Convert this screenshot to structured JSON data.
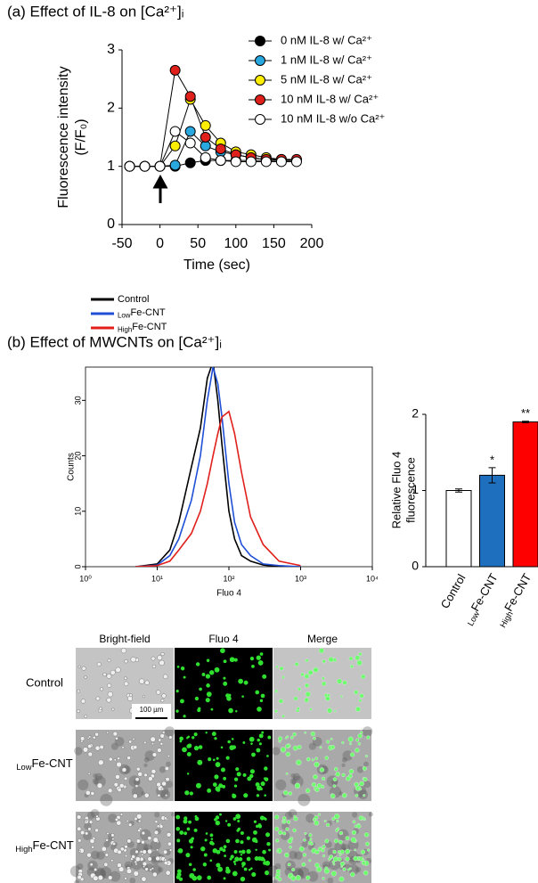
{
  "chart_data": [
    {
      "type": "line",
      "title": "(a) Effect of IL-8 on [Ca²⁺]ᵢ",
      "x_label": "Time (sec)",
      "y_label": [
        "Fluorescence intensity",
        "(F/F₀)"
      ],
      "x": [
        -40,
        -20,
        0,
        20,
        40,
        60,
        80,
        100,
        120,
        140,
        160,
        180
      ],
      "series": [
        {
          "name": "0 nM IL-8 w/ Ca²⁺",
          "color": "#000000",
          "values": [
            1.0,
            1.0,
            1.0,
            1.0,
            1.06,
            1.1,
            1.1,
            1.1,
            1.1,
            1.1,
            1.1,
            1.1
          ]
        },
        {
          "name": "1 nM IL-8 w/ Ca²⁺",
          "color": "#29a8e0",
          "values": [
            1.0,
            1.0,
            1.0,
            1.02,
            1.6,
            1.35,
            1.25,
            1.2,
            1.15,
            1.12,
            1.1,
            1.1
          ]
        },
        {
          "name": "5 nM IL-8 w/ Ca²⁺",
          "color": "#ffee00",
          "values": [
            1.0,
            1.0,
            1.0,
            1.35,
            2.15,
            1.7,
            1.4,
            1.25,
            1.2,
            1.15,
            1.12,
            1.1
          ]
        },
        {
          "name": "10 nM IL-8 w/ Ca²⁺",
          "color": "#e0201b",
          "values": [
            1.0,
            1.0,
            1.0,
            2.65,
            2.2,
            1.5,
            1.3,
            1.2,
            1.15,
            1.12,
            1.12,
            1.12
          ]
        },
        {
          "name": "10 nM IL-8 w/o Ca²⁺",
          "color": "#ffffff",
          "values": [
            1.0,
            1.0,
            1.0,
            1.6,
            1.4,
            1.15,
            1.1,
            1.08,
            1.08,
            1.08,
            1.08,
            1.08
          ]
        }
      ],
      "xlim": [
        -50,
        200
      ],
      "xticks": [
        -50,
        0,
        50,
        100,
        150,
        200
      ],
      "ylim": [
        0,
        3
      ],
      "yticks": [
        0,
        1,
        2,
        3
      ]
    },
    {
      "type": "line",
      "title": "(b) Effect of MWCNTs on [Ca²⁺]ᵢ",
      "x_label": "Fluo 4",
      "y_label": "Counts",
      "xscale": "log",
      "x": [
        5,
        10,
        15,
        20,
        30,
        40,
        50,
        60,
        70,
        80,
        100,
        120,
        150,
        200,
        300,
        500,
        1000
      ],
      "series": [
        {
          "name": "Control",
          "color": "#000000",
          "values": [
            0,
            0.5,
            3,
            8,
            18,
            25,
            34,
            37,
            30,
            22,
            10,
            5,
            2,
            1,
            0.3,
            0,
            0
          ]
        },
        {
          "name": [
            "Low",
            "Fe-CNT"
          ],
          "color": "#1f4fd6",
          "values": [
            0,
            0.3,
            2,
            5,
            12,
            20,
            30,
            36,
            33,
            27,
            15,
            8,
            4,
            2,
            0.5,
            0.2,
            0
          ]
        },
        {
          "name": [
            "High",
            "Fe-CNT"
          ],
          "color": "#e0201b",
          "values": [
            0,
            0.2,
            1,
            3,
            6,
            10,
            15,
            20,
            24,
            27,
            28,
            24,
            17,
            9,
            4,
            1,
            0.2
          ]
        }
      ],
      "xlim": [
        1,
        10000
      ],
      "xticks": [
        {
          "value": 1,
          "label": "10⁰"
        },
        {
          "value": 10,
          "label": "10¹"
        },
        {
          "value": 100,
          "label": "10²"
        },
        {
          "value": 1000,
          "label": "10³"
        },
        {
          "value": 10000,
          "label": "10⁴"
        }
      ],
      "ylim": [
        0,
        36
      ],
      "yticks": [
        0,
        10,
        20,
        30
      ]
    },
    {
      "type": "bar",
      "y_label": [
        "Relative Fluo 4",
        "fluorescence"
      ],
      "categories": [
        "Control",
        [
          "Low",
          "Fe-CNT"
        ],
        [
          "High",
          "Fe-CNT"
        ]
      ],
      "values": [
        1.0,
        1.2,
        1.9
      ],
      "errors": [
        0.02,
        0.1,
        0.01
      ],
      "significance": [
        null,
        "*",
        "**"
      ],
      "colors": [
        "#ffffff",
        "#1f6fbf",
        "#ff0000"
      ],
      "ylim": [
        0,
        2
      ],
      "yticks": [
        0,
        1,
        2
      ]
    }
  ],
  "micrographs": {
    "columns": [
      "Bright-field",
      "Fluo 4",
      "Merge"
    ],
    "rows": [
      "Control",
      [
        "Low",
        "Fe-CNT"
      ],
      [
        "High",
        "Fe-CNT"
      ]
    ],
    "scale_bar": "100 µm"
  }
}
